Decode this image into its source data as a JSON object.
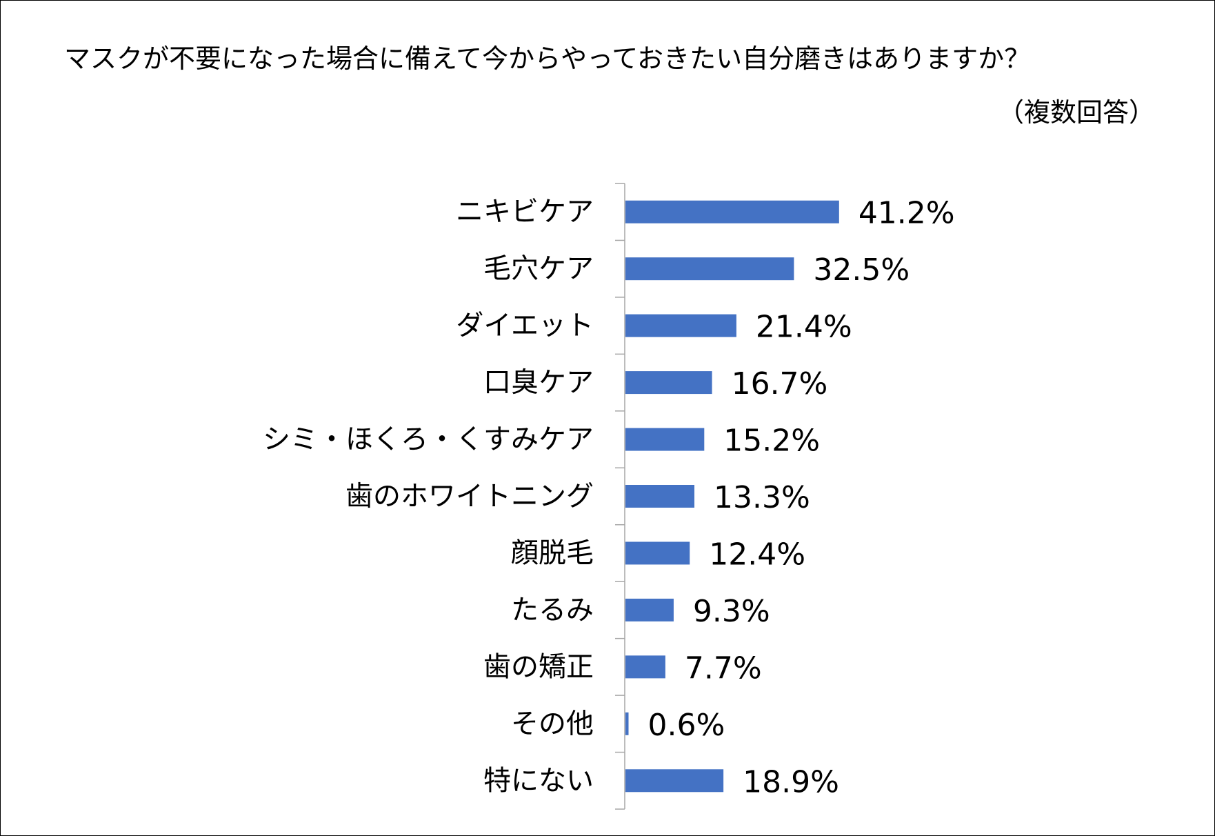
{
  "chart_data": {
    "type": "bar",
    "orientation": "horizontal",
    "title": "マスクが不要になった場合に備えて今からやっておきたい自分磨きはありますか？",
    "subtitle": "（複数回答）",
    "categories": [
      "ニキビケア",
      "毛穴ケア",
      "ダイエット",
      "口臭ケア",
      "シミ・ほくろ・くすみケア",
      "歯のホワイトニング",
      "顔脱毛",
      "たるみ",
      "歯の矯正",
      "その他",
      "特にない"
    ],
    "values": [
      41.2,
      32.5,
      21.4,
      16.7,
      15.2,
      13.3,
      12.4,
      9.3,
      7.7,
      0.6,
      18.9
    ],
    "value_labels": [
      "41.2%",
      "32.5%",
      "21.4%",
      "16.7%",
      "15.2%",
      "13.3%",
      "12.4%",
      "9.3%",
      "7.7%",
      "0.6%",
      "18.9%"
    ],
    "unit": "%",
    "bar_color": "#4472C4",
    "axis_color": "#A6A6A6",
    "grid": false,
    "legend": "none",
    "xlim": [
      0,
      100
    ]
  }
}
